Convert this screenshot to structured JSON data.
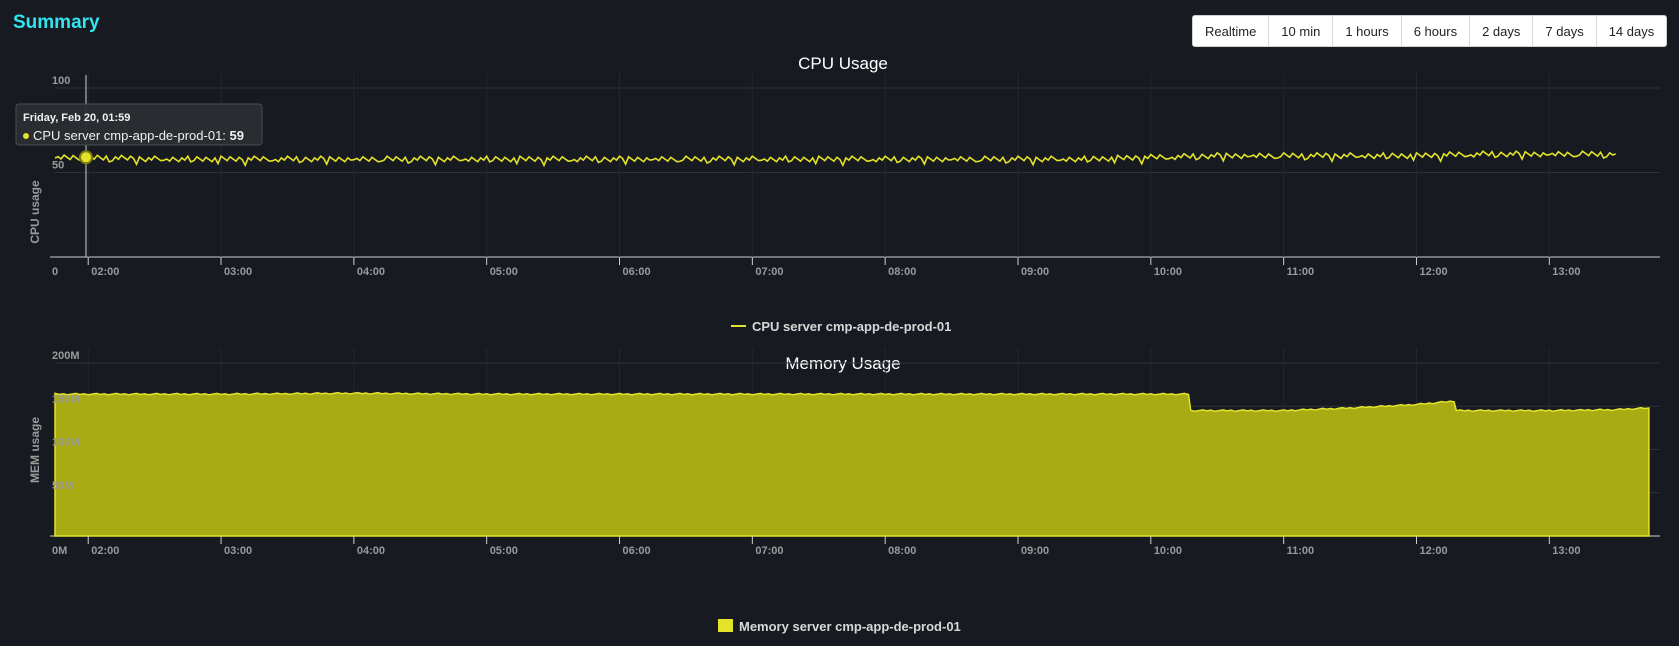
{
  "header": {
    "title": "Summary",
    "ranges": [
      "Realtime",
      "10 min",
      "1 hours",
      "6 hours",
      "2 days",
      "7 days",
      "14 days"
    ]
  },
  "colors": {
    "background": "#171a21",
    "accent": "#33e4ee",
    "series": "#e3e32b",
    "area_fill": "#a8ab14"
  },
  "chart_data": [
    {
      "type": "line",
      "title": "CPU Usage",
      "ylabel": "CPU usage",
      "xlabel": "",
      "ylim": [
        0,
        100
      ],
      "ytick_labels": [
        "0",
        "50",
        "100"
      ],
      "xtick_labels": [
        "02:00",
        "03:00",
        "04:00",
        "05:00",
        "06:00",
        "07:00",
        "08:00",
        "09:00",
        "10:00",
        "11:00",
        "12:00",
        "13:00"
      ],
      "x_range": [
        "01:45",
        "13:50"
      ],
      "grid": true,
      "legend": "bottom",
      "series": [
        {
          "name": "CPU server cmp-app-de-prod-01",
          "x": [
            "01:45",
            "02:00",
            "02:30",
            "03:00",
            "03:30",
            "04:00",
            "04:30",
            "05:00",
            "05:30",
            "06:00",
            "06:30",
            "07:00",
            "07:30",
            "08:00",
            "08:30",
            "09:00",
            "09:30",
            "10:00",
            "10:30",
            "11:00",
            "11:30",
            "12:00",
            "12:30",
            "13:00",
            "13:30"
          ],
          "values": [
            59,
            59,
            58,
            58,
            58,
            58,
            58,
            58,
            58,
            58,
            58,
            58,
            58,
            58,
            58,
            58,
            58,
            59,
            60,
            60,
            60,
            60,
            61,
            61,
            61
          ]
        }
      ],
      "tooltip": {
        "date": "Friday, Feb 20, 01:59",
        "series": "CPU server cmp-app-de-prod-01:",
        "value": "59"
      }
    },
    {
      "type": "area",
      "title": "Memory Usage",
      "ylabel": "MEM usage",
      "xlabel": "",
      "ylim": [
        0,
        200
      ],
      "ytick_labels": [
        "0M",
        "50M",
        "100M",
        "150M",
        "200M"
      ],
      "xtick_labels": [
        "02:00",
        "03:00",
        "04:00",
        "05:00",
        "06:00",
        "07:00",
        "08:00",
        "09:00",
        "10:00",
        "11:00",
        "12:00",
        "13:00"
      ],
      "x_range": [
        "01:45",
        "13:50"
      ],
      "grid": true,
      "legend": "bottom",
      "series": [
        {
          "name": "Memory server cmp-app-de-prod-01",
          "x": [
            "01:45",
            "02:00",
            "03:00",
            "04:00",
            "05:00",
            "06:00",
            "07:00",
            "08:00",
            "09:00",
            "10:00",
            "10:17",
            "10:18",
            "11:00",
            "11:30",
            "12:00",
            "12:17",
            "12:18",
            "13:00",
            "13:30",
            "13:45"
          ],
          "values": [
            164,
            164,
            164,
            165,
            164,
            164,
            164,
            164,
            164,
            164,
            164,
            145,
            145,
            148,
            152,
            156,
            145,
            145,
            146,
            148
          ]
        }
      ]
    }
  ]
}
